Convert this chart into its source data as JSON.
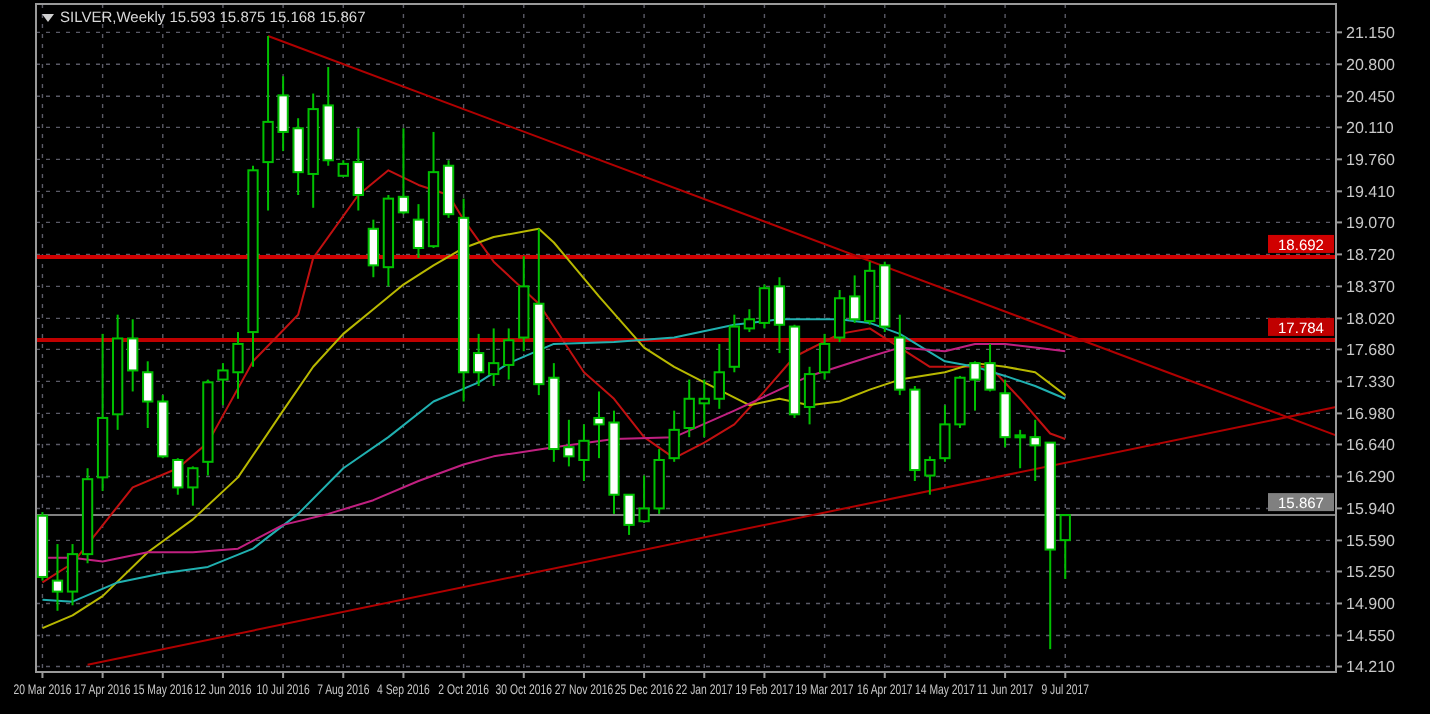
{
  "chart_data": {
    "type": "candlestick",
    "title": "SILVER,Weekly  15.593 15.875 15.168 15.867",
    "color": "#00c000",
    "x": [
      "2016-03-20",
      "2016-03-27",
      "2016-04-03",
      "2016-04-10",
      "2016-04-17",
      "2016-04-24",
      "2016-05-01",
      "2016-05-08",
      "2016-05-15",
      "2016-05-22",
      "2016-05-29",
      "2016-06-05",
      "2016-06-12",
      "2016-06-19",
      "2016-06-26",
      "2016-07-03",
      "2016-07-10",
      "2016-07-17",
      "2016-07-24",
      "2016-07-31",
      "2016-08-07",
      "2016-08-14",
      "2016-08-21",
      "2016-08-28",
      "2016-09-04",
      "2016-09-11",
      "2016-09-18",
      "2016-09-25",
      "2016-10-02",
      "2016-10-09",
      "2016-10-16",
      "2016-10-23",
      "2016-10-30",
      "2016-11-06",
      "2016-11-13",
      "2016-11-20",
      "2016-11-27",
      "2016-12-04",
      "2016-12-11",
      "2016-12-18",
      "2016-12-25",
      "2017-01-01",
      "2017-01-08",
      "2017-01-15",
      "2017-01-22",
      "2017-01-29",
      "2017-02-05",
      "2017-02-12",
      "2017-02-19",
      "2017-02-26",
      "2017-03-05",
      "2017-03-12",
      "2017-03-19",
      "2017-03-26",
      "2017-04-02",
      "2017-04-09",
      "2017-04-16",
      "2017-04-23",
      "2017-04-30",
      "2017-05-07",
      "2017-05-14",
      "2017-05-21",
      "2017-05-28",
      "2017-06-04",
      "2017-06-11",
      "2017-06-18",
      "2017-06-25",
      "2017-07-02",
      "2017-07-09"
    ],
    "ohlc": [
      [
        15.86,
        15.9,
        15.15,
        15.19
      ],
      [
        15.15,
        15.55,
        14.82,
        15.03
      ],
      [
        15.03,
        15.55,
        14.88,
        15.44
      ],
      [
        15.44,
        16.38,
        15.34,
        16.26
      ],
      [
        16.28,
        17.85,
        16.13,
        16.93
      ],
      [
        16.97,
        18.06,
        16.8,
        17.8
      ],
      [
        17.8,
        18.01,
        17.22,
        17.45
      ],
      [
        17.43,
        17.55,
        16.82,
        17.11
      ],
      [
        17.11,
        17.18,
        16.49,
        16.51
      ],
      [
        16.47,
        16.49,
        16.09,
        16.17
      ],
      [
        16.17,
        16.4,
        15.97,
        16.38
      ],
      [
        16.45,
        17.35,
        16.3,
        17.32
      ],
      [
        17.35,
        17.53,
        17.07,
        17.45
      ],
      [
        17.43,
        17.87,
        17.14,
        17.74
      ],
      [
        17.87,
        19.69,
        17.49,
        19.64
      ],
      [
        19.73,
        21.11,
        19.2,
        20.17
      ],
      [
        20.46,
        20.67,
        19.85,
        20.06
      ],
      [
        20.1,
        20.21,
        19.37,
        19.62
      ],
      [
        19.6,
        20.48,
        19.23,
        20.31
      ],
      [
        20.35,
        20.77,
        19.69,
        19.75
      ],
      [
        19.58,
        19.75,
        19.58,
        19.71
      ],
      [
        19.73,
        20.1,
        19.2,
        19.37
      ],
      [
        19,
        19.1,
        18.47,
        18.6
      ],
      [
        18.58,
        19.37,
        18.37,
        19.33
      ],
      [
        19.35,
        20.1,
        19.16,
        19.18
      ],
      [
        19.1,
        19.27,
        18.68,
        18.79
      ],
      [
        18.81,
        20.06,
        18.79,
        19.62
      ],
      [
        19.69,
        19.75,
        19.12,
        19.16
      ],
      [
        19.12,
        19.33,
        17.11,
        17.43
      ],
      [
        17.64,
        17.85,
        17.28,
        17.43
      ],
      [
        17.41,
        17.91,
        17.28,
        17.53
      ],
      [
        17.51,
        17.91,
        17.35,
        17.78
      ],
      [
        17.81,
        18.7,
        17.66,
        18.37
      ],
      [
        18.18,
        19,
        17.18,
        17.3
      ],
      [
        17.37,
        17.53,
        16.45,
        16.59
      ],
      [
        16.61,
        16.91,
        16.4,
        16.51
      ],
      [
        16.47,
        16.86,
        16.24,
        16.68
      ],
      [
        16.93,
        17.22,
        16.49,
        16.86
      ],
      [
        16.88,
        17.01,
        15.88,
        16.09
      ],
      [
        16.09,
        16.09,
        15.65,
        15.76
      ],
      [
        15.8,
        16.3,
        15.78,
        15.94
      ],
      [
        15.94,
        16.59,
        15.88,
        16.47
      ],
      [
        16.49,
        17.01,
        16.45,
        16.8
      ],
      [
        16.82,
        17.35,
        16.72,
        17.14
      ],
      [
        17.09,
        17.35,
        16.72,
        17.14
      ],
      [
        17.14,
        17.74,
        17.03,
        17.43
      ],
      [
        17.49,
        18.06,
        17.43,
        17.93
      ],
      [
        17.91,
        18.12,
        17.87,
        18.01
      ],
      [
        17.97,
        18.39,
        17.91,
        18.35
      ],
      [
        18.37,
        18.47,
        17.64,
        17.95
      ],
      [
        17.93,
        17.95,
        16.93,
        16.97
      ],
      [
        17.05,
        17.49,
        16.86,
        17.41
      ],
      [
        17.43,
        17.85,
        17.35,
        17.74
      ],
      [
        17.81,
        18.33,
        17.76,
        18.24
      ],
      [
        18.26,
        18.49,
        17.97,
        18.01
      ],
      [
        17.99,
        18.64,
        17.95,
        18.54
      ],
      [
        18.6,
        18.64,
        17.87,
        17.93
      ],
      [
        17.81,
        18.06,
        17.18,
        17.24
      ],
      [
        17.24,
        17.28,
        16.24,
        16.36
      ],
      [
        16.3,
        16.51,
        16.09,
        16.47
      ],
      [
        16.49,
        17.07,
        16.45,
        16.86
      ],
      [
        16.86,
        17.39,
        16.82,
        17.37
      ],
      [
        17.53,
        17.55,
        17.01,
        17.35
      ],
      [
        17.53,
        17.74,
        17.22,
        17.24
      ],
      [
        17.2,
        17.35,
        16.61,
        16.72
      ],
      [
        16.72,
        16.8,
        16.38,
        16.74
      ],
      [
        16.72,
        16.91,
        16.24,
        16.63
      ],
      [
        16.66,
        16.66,
        14.4,
        15.49
      ],
      [
        15.593,
        15.875,
        15.168,
        15.867
      ]
    ],
    "series": [
      {
        "type": "line",
        "color": "#c01010",
        "x": [
          "2016-03-20",
          "2016-04-03",
          "2016-05-01",
          "2016-05-22",
          "2016-06-05",
          "2016-06-26",
          "2016-07-17",
          "2016-07-24",
          "2016-08-14",
          "2016-08-28",
          "2016-09-11",
          "2016-09-25",
          "2016-10-02",
          "2016-10-16",
          "2016-11-06",
          "2016-11-27",
          "2016-12-11",
          "2016-12-25",
          "2017-01-08",
          "2017-01-22",
          "2017-02-05",
          "2017-02-19",
          "2017-03-05",
          "2017-03-26",
          "2017-04-09",
          "2017-04-23",
          "2017-05-07",
          "2017-05-21",
          "2017-06-04",
          "2017-06-18",
          "2017-07-02",
          "2017-07-09"
        ],
        "values": [
          15.13,
          15.34,
          16.17,
          16.38,
          16.66,
          17.55,
          18.06,
          18.68,
          19.37,
          19.64,
          19.48,
          19.37,
          19.1,
          18.64,
          18.18,
          17.43,
          17.14,
          16.72,
          16.49,
          16.66,
          16.86,
          17.22,
          17.6,
          17.85,
          17.91,
          17.7,
          17.49,
          17.49,
          17.49,
          17.14,
          16.76,
          16.7
        ]
      },
      {
        "type": "line",
        "color": "#b8b800",
        "x": [
          "2016-03-20",
          "2016-04-03",
          "2016-04-17",
          "2016-05-08",
          "2016-05-29",
          "2016-06-19",
          "2016-07-10",
          "2016-07-24",
          "2016-08-07",
          "2016-08-21",
          "2016-09-04",
          "2016-09-18",
          "2016-10-02",
          "2016-10-16",
          "2016-11-06",
          "2016-11-13",
          "2016-12-04",
          "2016-12-25",
          "2017-01-08",
          "2017-01-22",
          "2017-02-12",
          "2017-02-26",
          "2017-03-12",
          "2017-03-26",
          "2017-04-09",
          "2017-04-23",
          "2017-05-14",
          "2017-05-28",
          "2017-06-11",
          "2017-06-25",
          "2017-07-09"
        ],
        "values": [
          14.63,
          14.77,
          14.98,
          15.46,
          15.82,
          16.28,
          17.01,
          17.49,
          17.85,
          18.12,
          18.39,
          18.6,
          18.79,
          18.91,
          19,
          18.85,
          18.26,
          17.7,
          17.49,
          17.32,
          17.07,
          17.14,
          17.07,
          17.11,
          17.24,
          17.35,
          17.43,
          17.53,
          17.49,
          17.43,
          17.18
        ]
      },
      {
        "type": "line",
        "color": "#20b0b0",
        "x": [
          "2016-03-20",
          "2016-04-03",
          "2016-04-24",
          "2016-05-15",
          "2016-06-05",
          "2016-06-26",
          "2016-07-17",
          "2016-08-07",
          "2016-08-28",
          "2016-09-18",
          "2016-10-09",
          "2016-10-23",
          "2016-11-13",
          "2016-12-11",
          "2017-01-08",
          "2017-02-05",
          "2017-02-26",
          "2017-03-26",
          "2017-04-09",
          "2017-04-23",
          "2017-05-14",
          "2017-05-28",
          "2017-06-11",
          "2017-06-25",
          "2017-07-09"
        ],
        "values": [
          14.94,
          14.92,
          15.13,
          15.23,
          15.3,
          15.5,
          15.88,
          16.38,
          16.72,
          17.11,
          17.32,
          17.53,
          17.74,
          17.76,
          17.81,
          17.95,
          18.01,
          18.01,
          17.97,
          17.85,
          17.55,
          17.49,
          17.39,
          17.28,
          17.14
        ]
      },
      {
        "type": "line",
        "color": "#c02080",
        "x": [
          "2016-03-20",
          "2016-04-03",
          "2016-04-17",
          "2016-05-08",
          "2016-05-29",
          "2016-06-19",
          "2016-07-10",
          "2016-07-31",
          "2016-08-21",
          "2016-09-11",
          "2016-10-02",
          "2016-10-16",
          "2016-11-13",
          "2016-12-11",
          "2017-01-08",
          "2017-02-05",
          "2017-02-26",
          "2017-03-12",
          "2017-04-09",
          "2017-04-23",
          "2017-05-14",
          "2017-05-28",
          "2017-06-11",
          "2017-06-25",
          "2017-07-09"
        ],
        "values": [
          15.4,
          15.4,
          15.36,
          15.46,
          15.46,
          15.5,
          15.76,
          15.88,
          16.03,
          16.24,
          16.42,
          16.51,
          16.61,
          16.7,
          16.72,
          17.01,
          17.24,
          17.39,
          17.6,
          17.7,
          17.66,
          17.74,
          17.74,
          17.7,
          17.66
        ]
      },
      {
        "type": "line",
        "color": "#b00000",
        "x": [
          "2016-07-03",
          "2017-11-12"
        ],
        "values": [
          21.11,
          16.74
        ]
      },
      {
        "type": "line",
        "color": "#b00000",
        "x": [
          "2016-04-10",
          "2017-11-12"
        ],
        "values": [
          14.23,
          17.05
        ]
      }
    ],
    "ref_lines": [
      {
        "axis": "y",
        "value": 18.692,
        "label": "18.692",
        "color": "#d00000"
      },
      {
        "axis": "y",
        "value": 17.784,
        "label": "17.784",
        "color": "#c00000"
      },
      {
        "axis": "y",
        "value": 15.867,
        "label": "15.867",
        "color": "#808080"
      }
    ],
    "xlim": [
      "2016-03-17",
      "2017-11-12"
    ],
    "xticks": [
      {
        "value": "2016-03-20",
        "label": "20 Mar 2016"
      },
      {
        "value": "2016-04-17",
        "label": "17 Apr 2016"
      },
      {
        "value": "2016-05-15",
        "label": "15 May 2016"
      },
      {
        "value": "2016-06-12",
        "label": "12 Jun 2016"
      },
      {
        "value": "2016-07-10",
        "label": "10 Jul 2016"
      },
      {
        "value": "2016-08-07",
        "label": "7 Aug 2016"
      },
      {
        "value": "2016-09-04",
        "label": "4 Sep 2016"
      },
      {
        "value": "2016-10-02",
        "label": "2 Oct 2016"
      },
      {
        "value": "2016-10-30",
        "label": "30 Oct 2016"
      },
      {
        "value": "2016-11-27",
        "label": "27 Nov 2016"
      },
      {
        "value": "2016-12-25",
        "label": "25 Dec 2016"
      },
      {
        "value": "2017-01-22",
        "label": "22 Jan 2017"
      },
      {
        "value": "2017-02-19",
        "label": "19 Feb 2017"
      },
      {
        "value": "2017-03-19",
        "label": "19 Mar 2017"
      },
      {
        "value": "2017-04-16",
        "label": "16 Apr 2017"
      },
      {
        "value": "2017-05-14",
        "label": "14 May 2017"
      },
      {
        "value": "2017-06-11",
        "label": "11 Jun 2017"
      },
      {
        "value": "2017-07-09",
        "label": "9 Jul 2017"
      }
    ],
    "ylim": [
      14.15,
      21.46
    ],
    "yticks": [
      {
        "value": 21.15,
        "label": "21.150"
      },
      {
        "value": 20.8,
        "label": "20.800"
      },
      {
        "value": 20.45,
        "label": "20.450"
      },
      {
        "value": 20.11,
        "label": "20.110"
      },
      {
        "value": 19.76,
        "label": "19.760"
      },
      {
        "value": 19.41,
        "label": "19.410"
      },
      {
        "value": 19.07,
        "label": "19.070"
      },
      {
        "value": 18.72,
        "label": "18.720"
      },
      {
        "value": 18.37,
        "label": "18.370"
      },
      {
        "value": 18.02,
        "label": "18.020"
      },
      {
        "value": 17.68,
        "label": "17.680"
      },
      {
        "value": 17.33,
        "label": "17.330"
      },
      {
        "value": 16.98,
        "label": "16.980"
      },
      {
        "value": 16.64,
        "label": "16.640"
      },
      {
        "value": 16.29,
        "label": "16.290"
      },
      {
        "value": 15.94,
        "label": "15.940"
      },
      {
        "value": 15.59,
        "label": "15.590"
      },
      {
        "value": 15.25,
        "label": "15.250"
      },
      {
        "value": 14.9,
        "label": "14.900"
      },
      {
        "value": 14.55,
        "label": "14.550"
      },
      {
        "value": 14.21,
        "label": "14.210"
      }
    ],
    "grid": true
  }
}
